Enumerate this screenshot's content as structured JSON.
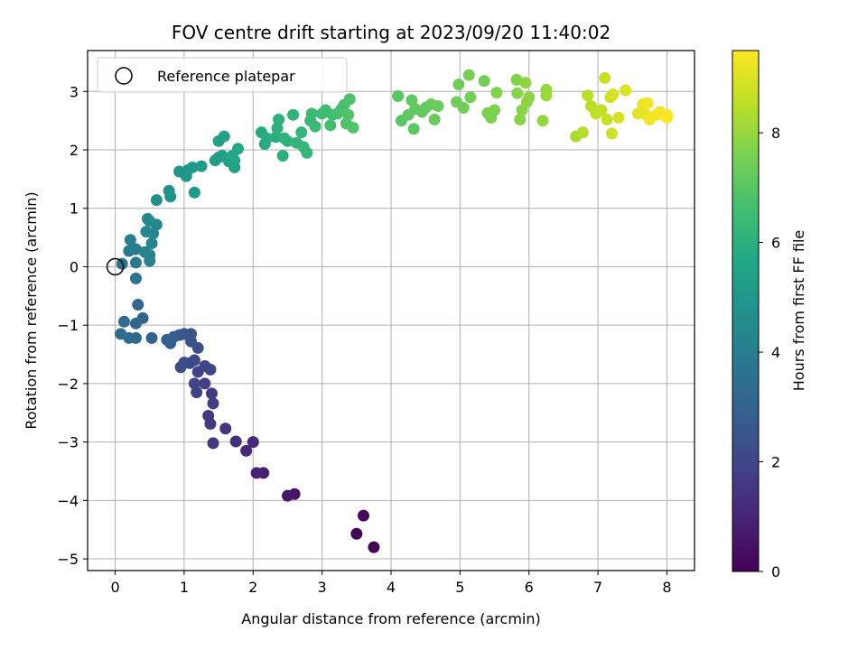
{
  "chart_data": {
    "type": "scatter",
    "title": "FOV centre drift starting at 2023/09/20 11:40:02",
    "xlabel": "Angular distance from reference (arcmin)",
    "ylabel": "Rotation from reference (arcmin)",
    "xlim": [
      -0.4,
      8.4
    ],
    "ylim": [
      -5.2,
      3.7
    ],
    "xticks": [
      0,
      1,
      2,
      3,
      4,
      5,
      6,
      7,
      8
    ],
    "yticks": [
      -5,
      -4,
      -3,
      -2,
      -1,
      0,
      1,
      2,
      3
    ],
    "grid": true,
    "legend": {
      "position": "top-left",
      "entries": [
        "Reference platepar"
      ]
    },
    "reference_point": {
      "x": 0,
      "y": 0
    },
    "colorbar": {
      "label": "Hours from first FF file",
      "range": [
        0,
        9.5
      ],
      "ticks": [
        0,
        2,
        4,
        6,
        8
      ],
      "colormap": "viridis"
    },
    "points": [
      [
        3.75,
        -4.8,
        0.0
      ],
      [
        3.5,
        -4.57,
        0.1
      ],
      [
        3.6,
        -4.26,
        0.2
      ],
      [
        2.6,
        -3.89,
        0.5
      ],
      [
        2.5,
        -3.92,
        0.6
      ],
      [
        2.15,
        -3.53,
        0.8
      ],
      [
        2.05,
        -3.53,
        0.9
      ],
      [
        2.0,
        -3.0,
        1.1
      ],
      [
        1.9,
        -3.15,
        1.1
      ],
      [
        1.75,
        -2.99,
        1.3
      ],
      [
        1.6,
        -2.77,
        1.4
      ],
      [
        1.42,
        -3.02,
        1.5
      ],
      [
        1.38,
        -2.69,
        1.6
      ],
      [
        1.35,
        -2.55,
        1.6
      ],
      [
        1.42,
        -2.34,
        1.7
      ],
      [
        1.4,
        -2.17,
        1.7
      ],
      [
        1.3,
        -2.0,
        1.8
      ],
      [
        1.18,
        -2.15,
        1.8
      ],
      [
        1.15,
        -2.0,
        1.9
      ],
      [
        1.2,
        -1.8,
        1.9
      ],
      [
        1.3,
        -1.7,
        2.0
      ],
      [
        1.38,
        -1.76,
        2.0
      ],
      [
        1.15,
        -1.6,
        2.1
      ],
      [
        1.08,
        -1.65,
        2.1
      ],
      [
        1.0,
        -1.64,
        2.2
      ],
      [
        0.95,
        -1.72,
        2.2
      ],
      [
        1.2,
        -1.39,
        2.3
      ],
      [
        1.1,
        -1.28,
        2.4
      ],
      [
        1.1,
        -1.15,
        2.5
      ],
      [
        1.0,
        -1.15,
        2.5
      ],
      [
        0.93,
        -1.17,
        2.6
      ],
      [
        0.85,
        -1.2,
        2.7
      ],
      [
        0.8,
        -1.31,
        2.8
      ],
      [
        0.75,
        -1.25,
        2.9
      ],
      [
        0.53,
        -1.22,
        3.0
      ],
      [
        0.4,
        -0.88,
        3.1
      ],
      [
        0.3,
        -0.97,
        3.1
      ],
      [
        0.33,
        -0.65,
        3.2
      ],
      [
        0.3,
        -1.22,
        3.2
      ],
      [
        0.2,
        -1.22,
        3.3
      ],
      [
        0.13,
        -0.94,
        3.3
      ],
      [
        0.08,
        -1.15,
        3.4
      ],
      [
        0.3,
        -0.2,
        3.6
      ],
      [
        0.1,
        0.05,
        3.6
      ],
      [
        0.3,
        0.07,
        3.8
      ],
      [
        0.3,
        0.3,
        3.8
      ],
      [
        0.2,
        0.27,
        3.9
      ],
      [
        0.22,
        0.46,
        4.0
      ],
      [
        0.5,
        0.1,
        4.1
      ],
      [
        0.5,
        0.2,
        4.1
      ],
      [
        0.43,
        0.25,
        4.2
      ],
      [
        0.53,
        0.4,
        4.3
      ],
      [
        0.55,
        0.57,
        4.3
      ],
      [
        0.45,
        0.6,
        4.4
      ],
      [
        0.6,
        0.72,
        4.4
      ],
      [
        0.5,
        0.78,
        4.5
      ],
      [
        0.47,
        0.82,
        4.5
      ],
      [
        0.6,
        1.14,
        4.7
      ],
      [
        0.78,
        1.3,
        4.8
      ],
      [
        0.8,
        1.2,
        4.8
      ],
      [
        0.93,
        1.63,
        4.9
      ],
      [
        1.03,
        1.55,
        5.0
      ],
      [
        1.05,
        1.65,
        5.0
      ],
      [
        1.12,
        1.7,
        5.1
      ],
      [
        1.15,
        1.27,
        5.1
      ],
      [
        1.25,
        1.72,
        5.2
      ],
      [
        1.45,
        1.82,
        5.3
      ],
      [
        1.5,
        1.87,
        5.3
      ],
      [
        1.55,
        1.9,
        5.3
      ],
      [
        1.5,
        2.15,
        5.4
      ],
      [
        1.58,
        2.23,
        5.4
      ],
      [
        1.65,
        1.8,
        5.4
      ],
      [
        1.73,
        1.7,
        5.5
      ],
      [
        1.73,
        1.82,
        5.5
      ],
      [
        1.78,
        2.02,
        5.6
      ],
      [
        1.7,
        1.9,
        5.6
      ],
      [
        2.12,
        2.3,
        5.8
      ],
      [
        2.17,
        2.1,
        5.8
      ],
      [
        2.2,
        2.2,
        5.9
      ],
      [
        2.33,
        2.22,
        5.9
      ],
      [
        2.35,
        2.37,
        6.0
      ],
      [
        2.37,
        2.52,
        6.0
      ],
      [
        2.43,
        1.9,
        6.0
      ],
      [
        2.45,
        2.2,
        6.1
      ],
      [
        2.5,
        2.15,
        6.1
      ],
      [
        2.58,
        2.6,
        6.1
      ],
      [
        2.63,
        2.12,
        6.2
      ],
      [
        2.7,
        2.3,
        6.2
      ],
      [
        2.73,
        2.05,
        6.3
      ],
      [
        2.78,
        1.95,
        6.3
      ],
      [
        2.83,
        2.5,
        6.3
      ],
      [
        2.85,
        2.62,
        6.4
      ],
      [
        2.9,
        2.4,
        6.4
      ],
      [
        3.0,
        2.62,
        6.5
      ],
      [
        3.05,
        2.68,
        6.5
      ],
      [
        3.12,
        2.42,
        6.6
      ],
      [
        3.15,
        2.6,
        6.6
      ],
      [
        3.22,
        2.62,
        6.7
      ],
      [
        3.28,
        2.7,
        6.7
      ],
      [
        3.32,
        2.77,
        6.7
      ],
      [
        3.35,
        2.45,
        6.8
      ],
      [
        3.4,
        2.87,
        6.8
      ],
      [
        3.45,
        2.38,
        6.9
      ],
      [
        3.38,
        2.6,
        6.9
      ],
      [
        4.1,
        2.92,
        7.0
      ],
      [
        4.15,
        2.5,
        7.0
      ],
      [
        4.25,
        2.6,
        7.1
      ],
      [
        4.3,
        2.85,
        7.1
      ],
      [
        4.33,
        2.36,
        7.1
      ],
      [
        4.35,
        2.7,
        7.2
      ],
      [
        4.45,
        2.65,
        7.2
      ],
      [
        4.5,
        2.72,
        7.2
      ],
      [
        4.58,
        2.78,
        7.3
      ],
      [
        4.63,
        2.52,
        7.3
      ],
      [
        4.68,
        2.75,
        7.3
      ],
      [
        4.95,
        2.82,
        7.4
      ],
      [
        4.98,
        3.12,
        7.4
      ],
      [
        5.05,
        2.72,
        7.4
      ],
      [
        5.13,
        3.28,
        7.5
      ],
      [
        5.15,
        2.9,
        7.5
      ],
      [
        5.35,
        3.18,
        7.5
      ],
      [
        5.4,
        2.63,
        7.6
      ],
      [
        5.45,
        2.55,
        7.6
      ],
      [
        5.5,
        2.68,
        7.6
      ],
      [
        5.53,
        2.98,
        7.7
      ],
      [
        5.82,
        3.2,
        7.7
      ],
      [
        5.83,
        2.97,
        7.8
      ],
      [
        5.87,
        2.52,
        7.8
      ],
      [
        5.9,
        2.68,
        7.8
      ],
      [
        5.95,
        3.15,
        7.9
      ],
      [
        5.97,
        2.82,
        7.9
      ],
      [
        6.0,
        2.9,
        7.9
      ],
      [
        6.2,
        2.5,
        8.0
      ],
      [
        6.25,
        3.03,
        8.0
      ],
      [
        6.25,
        2.93,
        8.1
      ],
      [
        6.68,
        2.23,
        8.3
      ],
      [
        6.78,
        2.3,
        8.4
      ],
      [
        6.85,
        2.93,
        8.5
      ],
      [
        6.9,
        2.75,
        8.5
      ],
      [
        6.97,
        2.62,
        8.6
      ],
      [
        7.05,
        2.68,
        8.6
      ],
      [
        7.1,
        3.23,
        8.7
      ],
      [
        7.13,
        2.52,
        8.7
      ],
      [
        7.18,
        2.9,
        8.8
      ],
      [
        7.2,
        2.28,
        8.8
      ],
      [
        7.22,
        2.95,
        8.9
      ],
      [
        7.3,
        2.55,
        8.9
      ],
      [
        7.4,
        3.02,
        9.0
      ],
      [
        7.58,
        2.62,
        9.1
      ],
      [
        7.65,
        2.78,
        9.2
      ],
      [
        7.7,
        2.6,
        9.2
      ],
      [
        7.72,
        2.8,
        9.3
      ],
      [
        7.75,
        2.52,
        9.3
      ],
      [
        7.85,
        2.6,
        9.3
      ],
      [
        7.9,
        2.65,
        9.4
      ],
      [
        8.0,
        2.55,
        9.5
      ],
      [
        8.0,
        2.6,
        9.5
      ]
    ]
  }
}
